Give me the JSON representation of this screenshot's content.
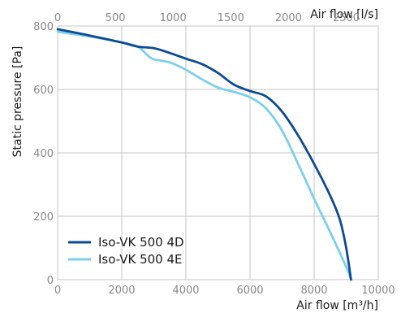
{
  "chart_data": {
    "type": "line",
    "xlabel_bottom": "Air flow [m³/h]",
    "xlabel_top": "Air flow [l/s]",
    "ylabel": "Static pressure [Pa]",
    "xlim": [
      0,
      10000
    ],
    "xlim_top": [
      0,
      2777.78
    ],
    "ylim": [
      0,
      800
    ],
    "x_ticks": [
      0,
      2000,
      4000,
      6000,
      8000,
      10000
    ],
    "x_top_ticks": [
      0,
      500,
      1000,
      1500,
      2000,
      2500
    ],
    "y_ticks": [
      0,
      200,
      400,
      600,
      800
    ],
    "grid": true,
    "legend_position": "bottom-left",
    "series": [
      {
        "name": "Iso-VK 500 4D",
        "color": "#0d4a94",
        "x": [
          0,
          1000,
          2000,
          2500,
          3000,
          3500,
          4000,
          4500,
          5000,
          5500,
          6000,
          6500,
          7000,
          7500,
          8000,
          8500,
          8800,
          9000,
          9150
        ],
        "y": [
          790,
          770,
          748,
          735,
          730,
          715,
          697,
          680,
          652,
          615,
          595,
          578,
          530,
          455,
          365,
          265,
          190,
          100,
          0
        ]
      },
      {
        "name": "Iso-VK 500 4E",
        "color": "#7ccfee",
        "x": [
          0,
          1000,
          2000,
          2500,
          2800,
          3000,
          3500,
          4000,
          4500,
          5000,
          5500,
          6000,
          6500,
          7000,
          7500,
          8000,
          8500,
          9000,
          9150
        ],
        "y": [
          782,
          767,
          748,
          735,
          708,
          695,
          685,
          662,
          632,
          606,
          592,
          575,
          540,
          470,
          365,
          255,
          150,
          40,
          0
        ]
      }
    ]
  }
}
